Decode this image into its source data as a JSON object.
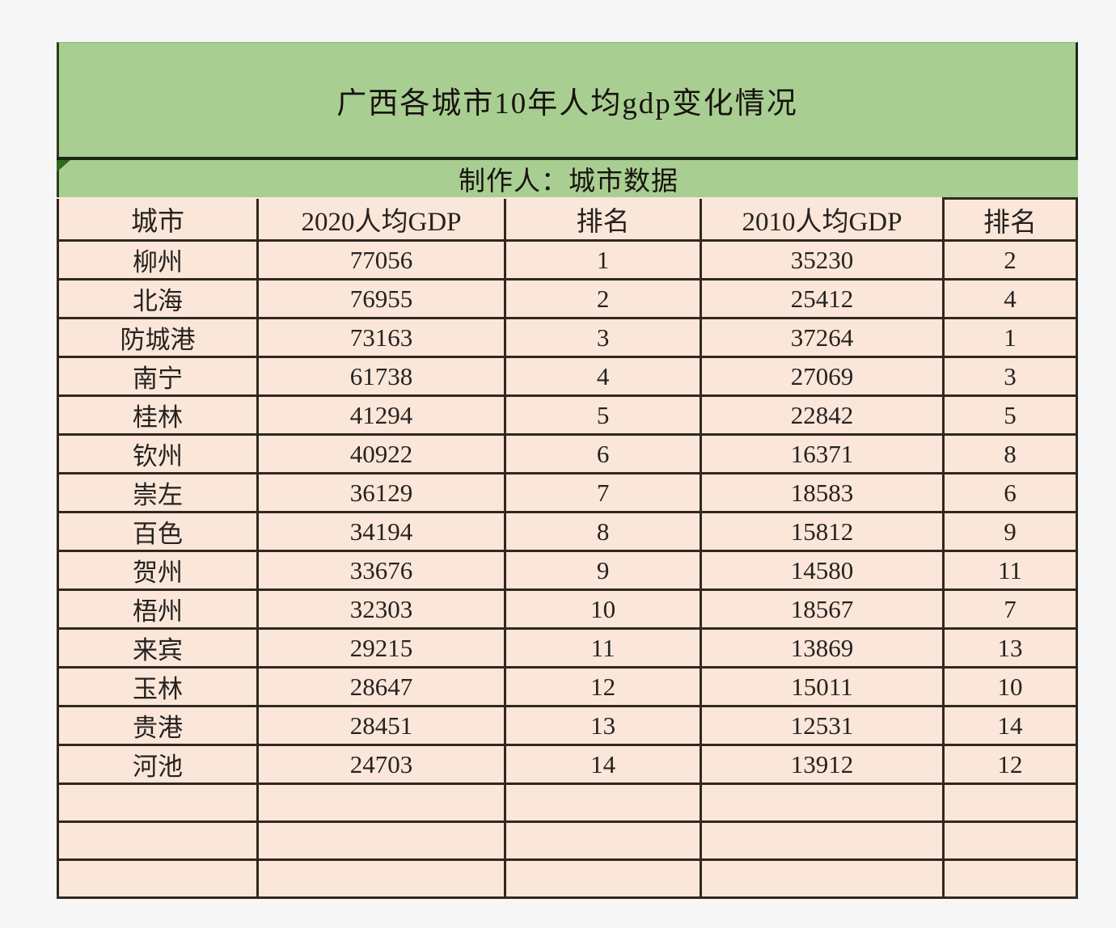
{
  "banner": {
    "title": "广西各城市10年人均gdp变化情况",
    "subtitle": "制作人：城市数据",
    "background_color": "#a9ce92",
    "divider_color": "#1a2913",
    "marker_color": "#2e6b1e"
  },
  "table": {
    "cell_background": "#fbe7d9",
    "border_color": "#312820",
    "columns": [
      "城市",
      "2020人均GDP",
      "排名",
      "2010人均GDP",
      "排名"
    ],
    "rows": [
      [
        "柳州",
        "77056",
        "1",
        "35230",
        "2"
      ],
      [
        "北海",
        "76955",
        "2",
        "25412",
        "4"
      ],
      [
        "防城港",
        "73163",
        "3",
        "37264",
        "1"
      ],
      [
        "南宁",
        "61738",
        "4",
        "27069",
        "3"
      ],
      [
        "桂林",
        "41294",
        "5",
        "22842",
        "5"
      ],
      [
        "钦州",
        "40922",
        "6",
        "16371",
        "8"
      ],
      [
        "崇左",
        "36129",
        "7",
        "18583",
        "6"
      ],
      [
        "百色",
        "34194",
        "8",
        "15812",
        "9"
      ],
      [
        "贺州",
        "33676",
        "9",
        "14580",
        "11"
      ],
      [
        "梧州",
        "32303",
        "10",
        "18567",
        "7"
      ],
      [
        "来宾",
        "29215",
        "11",
        "13869",
        "13"
      ],
      [
        "玉林",
        "28647",
        "12",
        "15011",
        "10"
      ],
      [
        "贵港",
        "28451",
        "13",
        "12531",
        "14"
      ],
      [
        "河池",
        "24703",
        "14",
        "13912",
        "12"
      ],
      [
        "",
        "",
        "",
        "",
        ""
      ],
      [
        "",
        "",
        "",
        "",
        ""
      ],
      [
        "",
        "",
        "",
        "",
        ""
      ]
    ]
  }
}
